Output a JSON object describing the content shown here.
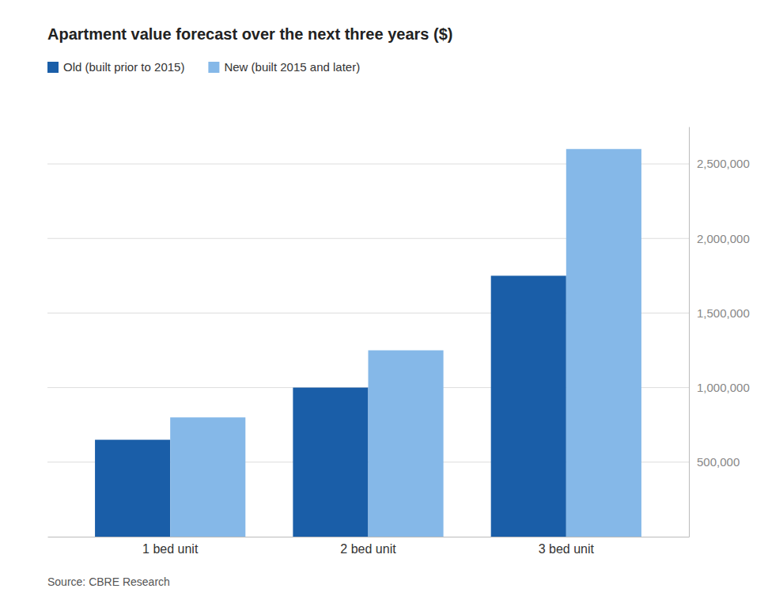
{
  "chart_data": {
    "type": "bar",
    "title": "Apartment value forecast over the next three years ($)",
    "categories": [
      "1 bed unit",
      "2 bed unit",
      "3 bed unit"
    ],
    "series": [
      {
        "name": "Old (built prior to 2015)",
        "color": "#1a5ea8",
        "values": [
          650000,
          1000000,
          1750000
        ]
      },
      {
        "name": "New (built 2015 and later)",
        "color": "#85b8e8",
        "values": [
          800000,
          1250000,
          2600000
        ]
      }
    ],
    "ylim": [
      0,
      2750000
    ],
    "yticks": [
      {
        "value": 500000,
        "label": "500,000"
      },
      {
        "value": 1000000,
        "label": "1,000,000"
      },
      {
        "value": 1500000,
        "label": "1,500,000"
      },
      {
        "value": 2000000,
        "label": "2,000,000"
      },
      {
        "value": 2500000,
        "label": "2,500,000"
      }
    ],
    "grid": true,
    "legend": "top",
    "annotations": [
      "Source: CBRE Research"
    ]
  }
}
